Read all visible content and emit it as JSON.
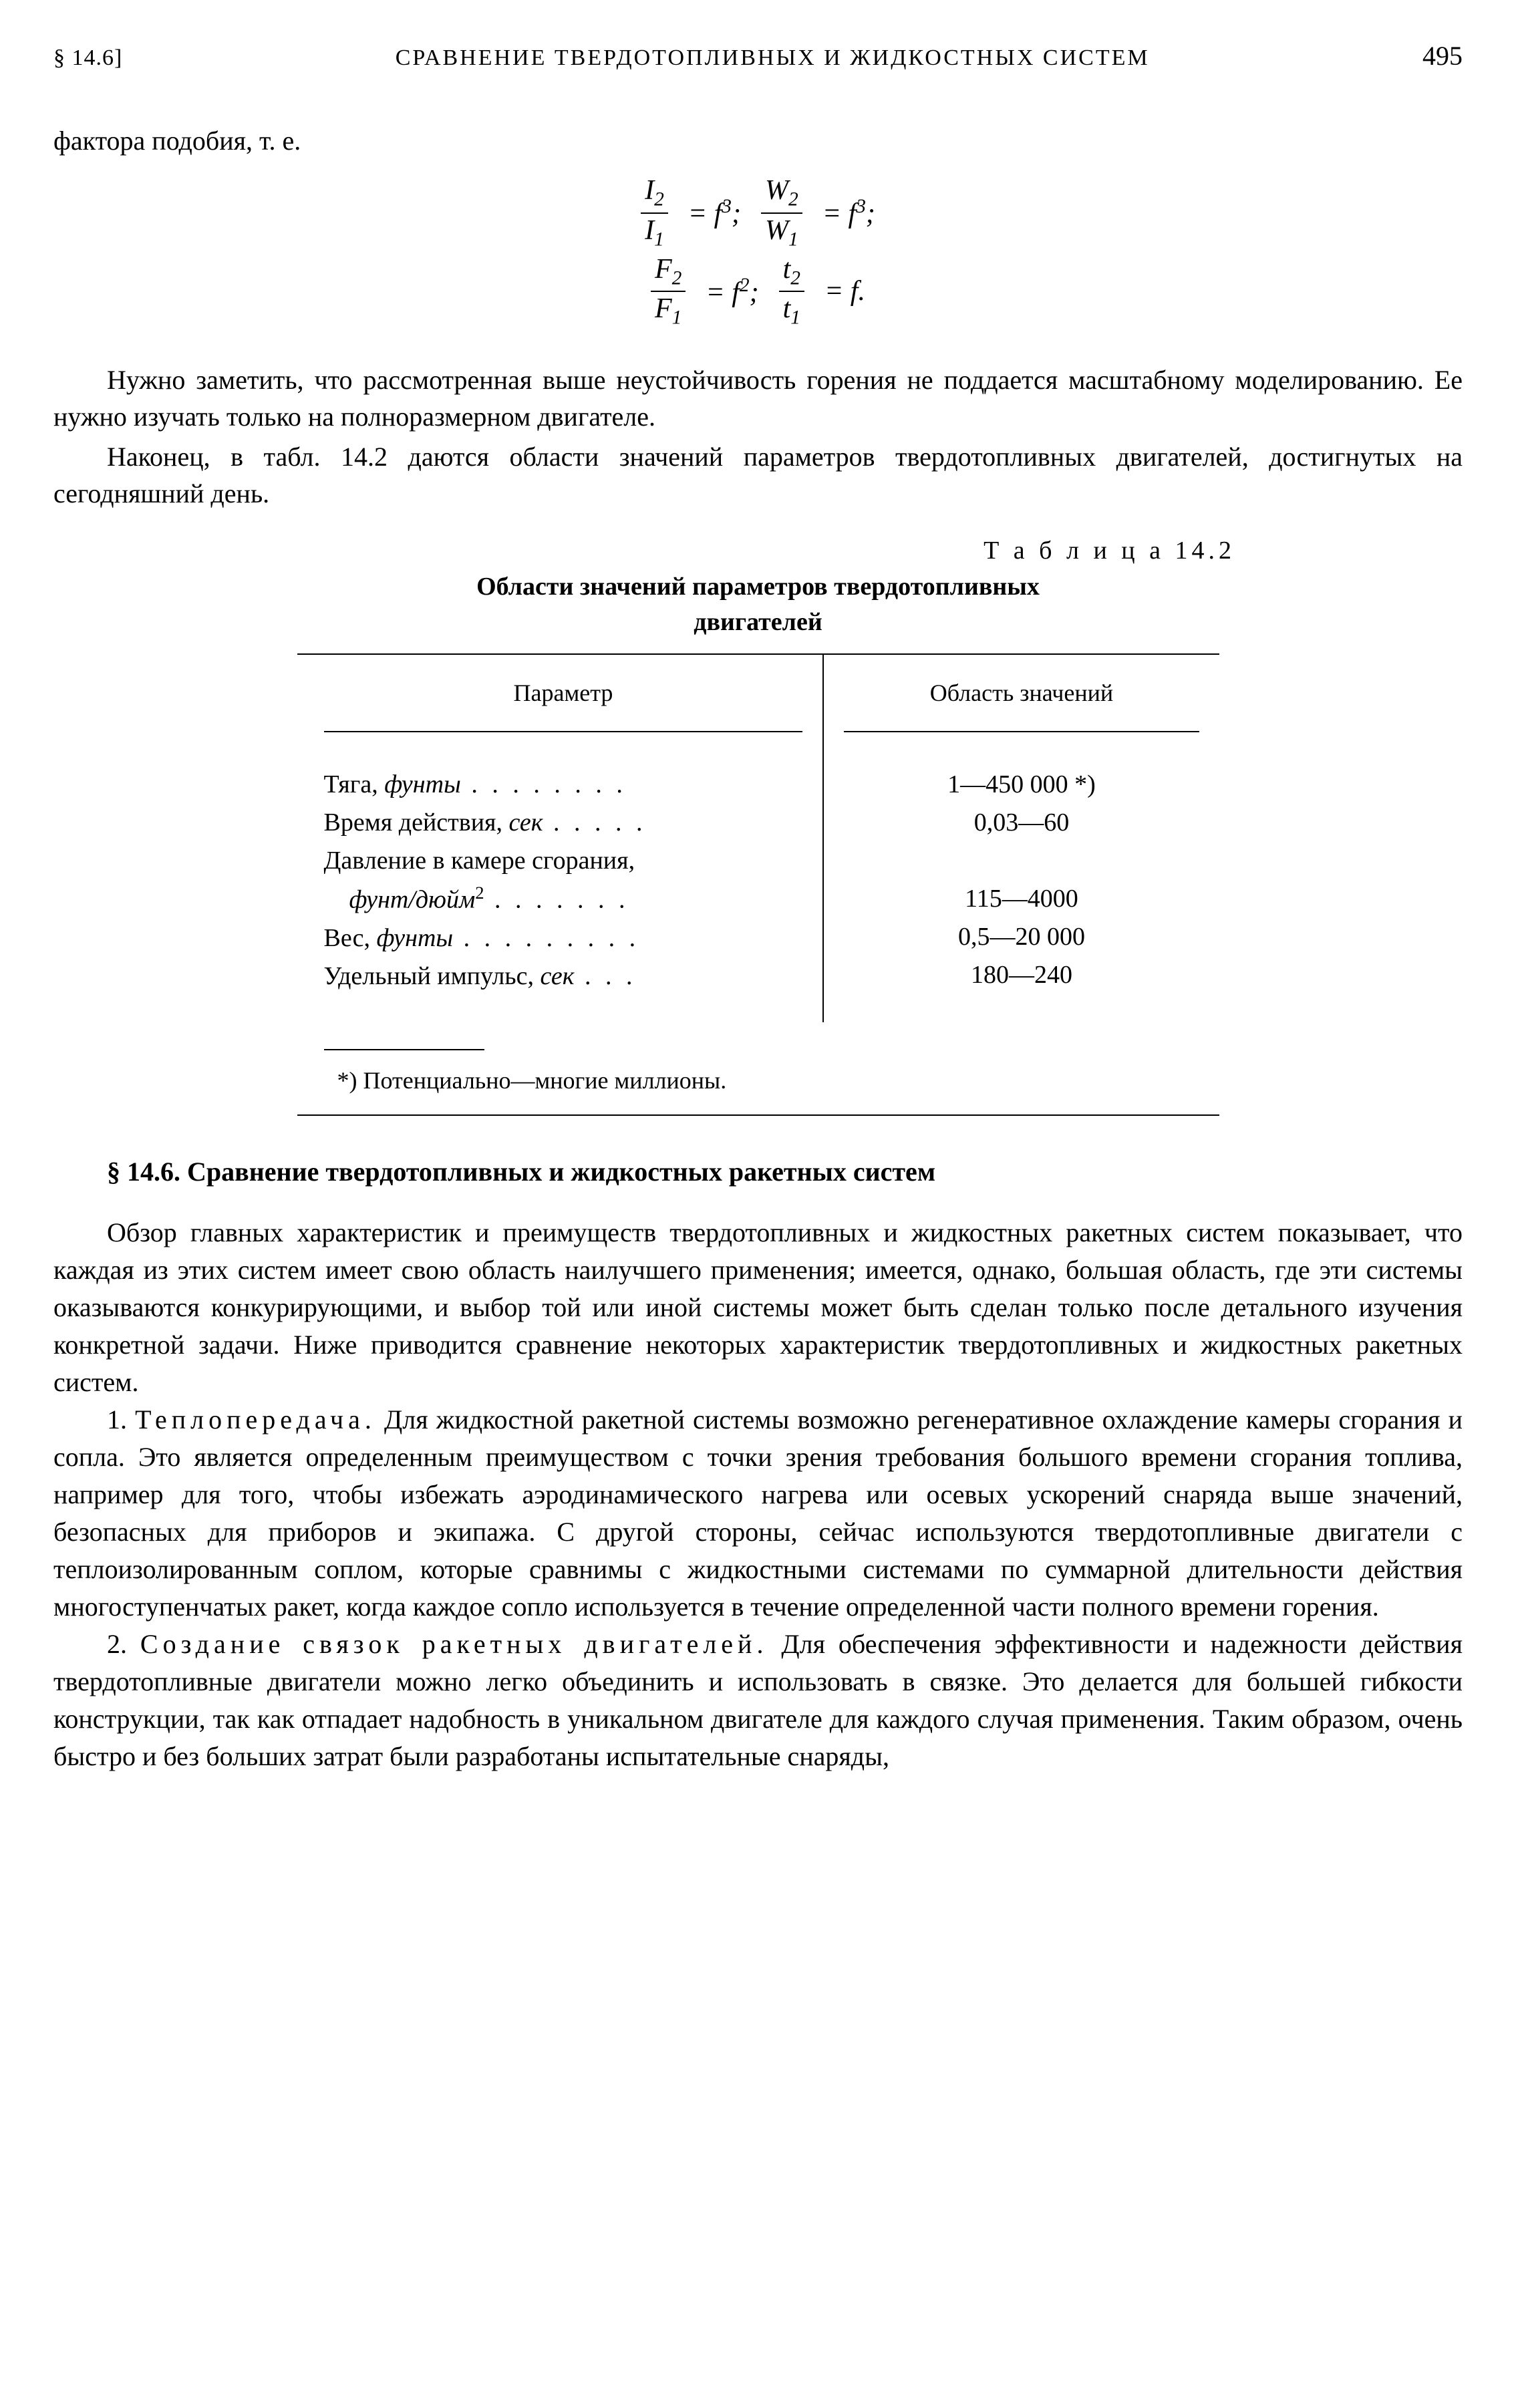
{
  "header": {
    "section_ref": "§ 14.6]",
    "running_title": "СРАВНЕНИЕ ТВЕРДОТОПЛИВНЫХ И ЖИДКОСТНЫХ СИСТЕМ",
    "page_number": "495"
  },
  "intro": "фактора подобия, т. е.",
  "equations": {
    "line1_a_num": "I",
    "line1_a_num_sub": "2",
    "line1_a_den": "I",
    "line1_a_den_sub": "1",
    "line1_a_rhs": "= f",
    "line1_a_sup": "3",
    "line1_b_num": "W",
    "line1_b_num_sub": "2",
    "line1_b_den": "W",
    "line1_b_den_sub": "1",
    "line1_b_rhs": "= f",
    "line1_b_sup": "3",
    "line2_a_num": "F",
    "line2_a_num_sub": "2",
    "line2_a_den": "F",
    "line2_a_den_sub": "1",
    "line2_a_rhs": "= f",
    "line2_a_sup": "2",
    "line2_b_num": "t",
    "line2_b_num_sub": "2",
    "line2_b_den": "t",
    "line2_b_den_sub": "1",
    "line2_b_rhs": "= f."
  },
  "para1": "Нужно заметить, что рассмотренная выше неустойчивость горения не поддается масштабному моделированию. Ее нужно изучать только на полноразмерном двигателе.",
  "para2": "Наконец, в табл. 14.2 даются области значений параметров твердотопливных двигателей, достигнутых на сегодняшний день.",
  "table": {
    "caption": "Т а б л и ц а  14.2",
    "title_l1": "Области значений параметров твердотопливных",
    "title_l2": "двигателей",
    "col1_header": "Параметр",
    "col2_header": "Область значений",
    "rows": [
      {
        "param_pre": "Тяга, ",
        "param_it": "фунты",
        "dots": " . . . . . . . .",
        "value": "1—450 000 *)"
      },
      {
        "param_pre": "Время действия, ",
        "param_it": "сек",
        "dots": " . . . . .",
        "value": "0,03—60"
      },
      {
        "param_pre": "Давление в камере сгорания,",
        "param_it": "",
        "dots": "",
        "value": ""
      },
      {
        "param_pre": "    ",
        "param_it": "фунт/дюйм",
        "param_sup": "2",
        "dots": " . . . . . . .",
        "value": "115—4000"
      },
      {
        "param_pre": "Вес, ",
        "param_it": "фунты",
        "dots": " . . . . . . . . .",
        "value": "0,5—20 000"
      },
      {
        "param_pre": "Удельный импульс, ",
        "param_it": "сек",
        "dots": " . . .",
        "value": "180—240"
      }
    ],
    "footnote": "*) Потенциально—многие миллионы."
  },
  "section_heading_pre": "§ 14.6. ",
  "section_heading": "Сравнение твердотопливных и жидкостных ракетных систем",
  "body1": "Обзор главных характеристик и преимуществ твердотопливных и жидкостных ракетных систем показывает, что каждая из этих систем имеет свою область наилучшего применения; имеется, однако, большая область, где эти системы оказываются конкурирующими, и выбор той или иной системы может быть сделан только после детального изучения конкретной задачи. Ниже приводится сравнение некоторых характеристик твердотопливных и жидкостных ракетных систем.",
  "body2_num": "1. ",
  "body2_spaced": "Теплопередача.",
  "body2_rest": " Для жидкостной ракетной системы возможно регенеративное охлаждение камеры сгорания и сопла. Это является определенным преимуществом с точки зрения требования большого времени сгорания топлива, например для того, чтобы избежать аэродинамического нагрева или осевых ускорений снаряда выше значений, безопасных для приборов и экипажа. С другой стороны, сейчас используются твердотопливные двигатели с теплоизолированным соплом, которые сравнимы с жидкостными системами по суммарной длительности действия многоступенчатых ракет, когда каждое сопло используется в течение определенной части полного времени горения.",
  "body3_num": "2. ",
  "body3_spaced": "Создание связок ракетных двигателей.",
  "body3_rest": " Для обеспечения эффективности и надежности действия твердотопливные двигатели можно легко объединить и использовать в связке. Это делается для большей гибкости конструкции, так как отпадает надобность в уникальном двигателе для каждого случая применения. Таким образом, очень быстро и без больших затрат были разработаны испытательные снаряды,"
}
